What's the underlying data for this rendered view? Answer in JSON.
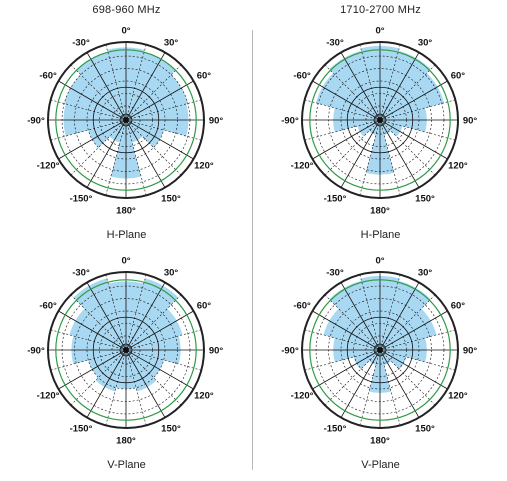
{
  "columns": [
    {
      "band": "698-960 MHz"
    },
    {
      "band": "1710-2700 MHz"
    }
  ],
  "planes": [
    {
      "label": "H-Plane"
    },
    {
      "label": "V-Plane"
    }
  ],
  "angle_labels": [
    "0°",
    "30°",
    "60°",
    "90°",
    "120°",
    "150°",
    "180°",
    "-150°",
    "-120°",
    "-90°",
    "-60°",
    "-30°"
  ],
  "colors": {
    "pattern_fill": "#a9d8f2",
    "outer_ring": "#222222",
    "ring_green": "#2e9b45",
    "grid": "#111111"
  },
  "chart_data": [
    {
      "type": "polar",
      "band": "698-960 MHz",
      "plane": "H-Plane",
      "angles_deg": [
        -180,
        -150,
        -120,
        -90,
        -60,
        -30,
        0,
        30,
        60,
        90,
        120,
        150
      ],
      "relative_gain": [
        0.75,
        0.3,
        0.5,
        0.8,
        0.82,
        0.9,
        0.93,
        0.9,
        0.82,
        0.8,
        0.5,
        0.3
      ]
    },
    {
      "type": "polar",
      "band": "1710-2700 MHz",
      "plane": "H-Plane",
      "angles_deg": [
        -180,
        -150,
        -120,
        -90,
        -60,
        -30,
        0,
        30,
        60,
        90,
        120,
        150
      ],
      "relative_gain": [
        0.7,
        0.2,
        0.3,
        0.6,
        0.85,
        0.92,
        0.95,
        0.92,
        0.85,
        0.6,
        0.3,
        0.2
      ]
    },
    {
      "type": "polar",
      "band": "698-960 MHz",
      "plane": "V-Plane",
      "angles_deg": [
        -180,
        -150,
        -120,
        -90,
        -60,
        -30,
        0,
        30,
        60,
        90,
        120,
        150
      ],
      "relative_gain": [
        0.5,
        0.55,
        0.5,
        0.7,
        0.75,
        0.95,
        0.88,
        0.95,
        0.75,
        0.7,
        0.5,
        0.55
      ]
    },
    {
      "type": "polar",
      "band": "1710-2700 MHz",
      "plane": "V-Plane",
      "angles_deg": [
        -180,
        -150,
        -120,
        -90,
        -60,
        -30,
        0,
        30,
        60,
        90,
        120,
        150
      ],
      "relative_gain": [
        0.55,
        0.2,
        0.35,
        0.6,
        0.75,
        0.92,
        0.95,
        0.92,
        0.75,
        0.6,
        0.35,
        0.2
      ]
    }
  ]
}
